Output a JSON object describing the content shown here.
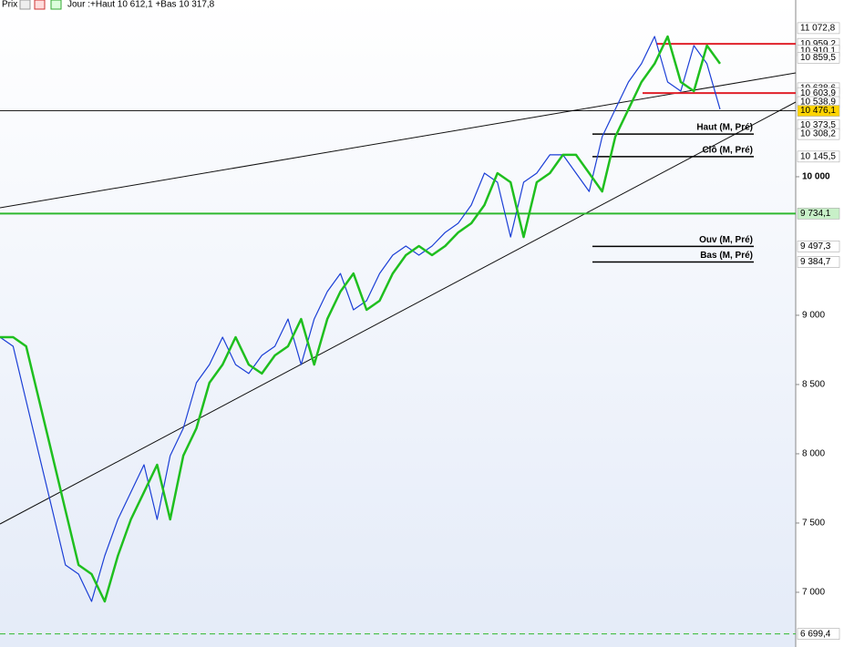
{
  "header": {
    "title": "Prix",
    "info": "Jour :+Haut 10 612,1 +Bas 10 317,8"
  },
  "chart_data": {
    "type": "line",
    "categories": [
      null,
      null,
      null,
      null,
      null,
      null,
      null,
      null,
      null,
      null,
      null,
      null,
      null,
      null,
      null,
      null,
      null,
      null,
      null,
      null,
      null,
      null,
      null,
      null,
      null,
      null,
      null,
      null,
      null,
      null,
      null,
      null,
      null,
      null,
      null,
      null,
      null,
      null,
      null,
      null,
      null,
      null,
      null,
      null,
      null,
      null,
      null,
      null,
      null,
      null,
      null,
      null,
      null,
      null,
      null,
      null
    ],
    "series": [
      {
        "color": "#1b3fd6",
        "values": [
          8842,
          8776,
          8381,
          7986,
          7592,
          7197,
          7131,
          6934,
          7263,
          7526,
          7723,
          7921,
          7526,
          7986,
          8184,
          8513,
          8644,
          8842,
          8644,
          8579,
          8710,
          8776,
          8973,
          8644,
          8973,
          9171,
          9302,
          9039,
          9105,
          9302,
          9434,
          9500,
          9434,
          9500,
          9598,
          9664,
          9796,
          10026,
          9960,
          9565,
          9960,
          10026,
          10158,
          10158,
          10026,
          9894,
          10289,
          10487,
          10684,
          10816,
          11013,
          10684,
          10618,
          10947,
          10816,
          10487
        ]
      },
      {
        "color": "#1fbf1f",
        "values": [
          8842,
          8842,
          8776,
          8381,
          7986,
          7592,
          7197,
          7131,
          6934,
          7263,
          7526,
          7723,
          7921,
          7526,
          7986,
          8184,
          8513,
          8644,
          8842,
          8644,
          8579,
          8710,
          8776,
          8973,
          8644,
          8973,
          9171,
          9302,
          9039,
          9105,
          9302,
          9434,
          9500,
          9434,
          9500,
          9598,
          9664,
          9796,
          10026,
          9960,
          9565,
          9960,
          10026,
          10158,
          10158,
          10026,
          9894,
          10289,
          10487,
          10684,
          10816,
          11013,
          10684,
          10618,
          10947,
          10816
        ]
      }
    ],
    "ylim": [
      6605,
      11276
    ],
    "yticks": [
      {
        "value": 7000,
        "label": "7 000"
      },
      {
        "value": 7500,
        "label": "7 500"
      },
      {
        "value": 8000,
        "label": "8 000"
      },
      {
        "value": 8500,
        "label": "8 500"
      },
      {
        "value": 9000,
        "label": "9 000"
      },
      {
        "value": 10000,
        "label": "10 000",
        "bold": true
      }
    ],
    "levels": [
      {
        "value": 10959.2,
        "color": "#e0202a"
      },
      {
        "value": 10603.9,
        "color": "#e0202a"
      },
      {
        "value": 10476.1,
        "color": "#000000"
      },
      {
        "value": 9734.1,
        "color": "#2fb82f"
      },
      {
        "value": 6699.4,
        "color": "#2fb82f",
        "dashed": true
      }
    ],
    "annotations": [
      {
        "text": "Haut (M, Pré)",
        "value": 10308.2
      },
      {
        "text": "Clô (M, Pré)",
        "value": 10145.5
      },
      {
        "text": "Ouv (M, Pré)",
        "value": 9497.3
      },
      {
        "text": "Bas (M, Pré)",
        "value": 9384.7
      }
    ],
    "price_labels": [
      {
        "value": 11072.8,
        "label": "11 072,8"
      },
      {
        "value": 10959.2,
        "label": "10 959,2"
      },
      {
        "value": 10910.1,
        "label": "10 910,1"
      },
      {
        "value": 10859.5,
        "label": "10 859,5"
      },
      {
        "value": 10638.6,
        "label": "10 638,6"
      },
      {
        "value": 10603.9,
        "label": "10 603,9"
      },
      {
        "value": 10538.9,
        "label": "10 538,9"
      },
      {
        "value": 10476.1,
        "label": "10 476,1",
        "color": "#ffd400"
      },
      {
        "value": 10373.5,
        "label": "10 373,5"
      },
      {
        "value": 10308.2,
        "label": "10 308,2"
      },
      {
        "value": 10145.5,
        "label": "10 145,5"
      },
      {
        "value": 9734.1,
        "label": "9 734,1",
        "color": "#c8f0c8"
      },
      {
        "value": 9497.3,
        "label": "9 497,3"
      },
      {
        "value": 9384.7,
        "label": "9 384,7"
      },
      {
        "value": 6699.4,
        "label": "6 699,4"
      }
    ]
  }
}
